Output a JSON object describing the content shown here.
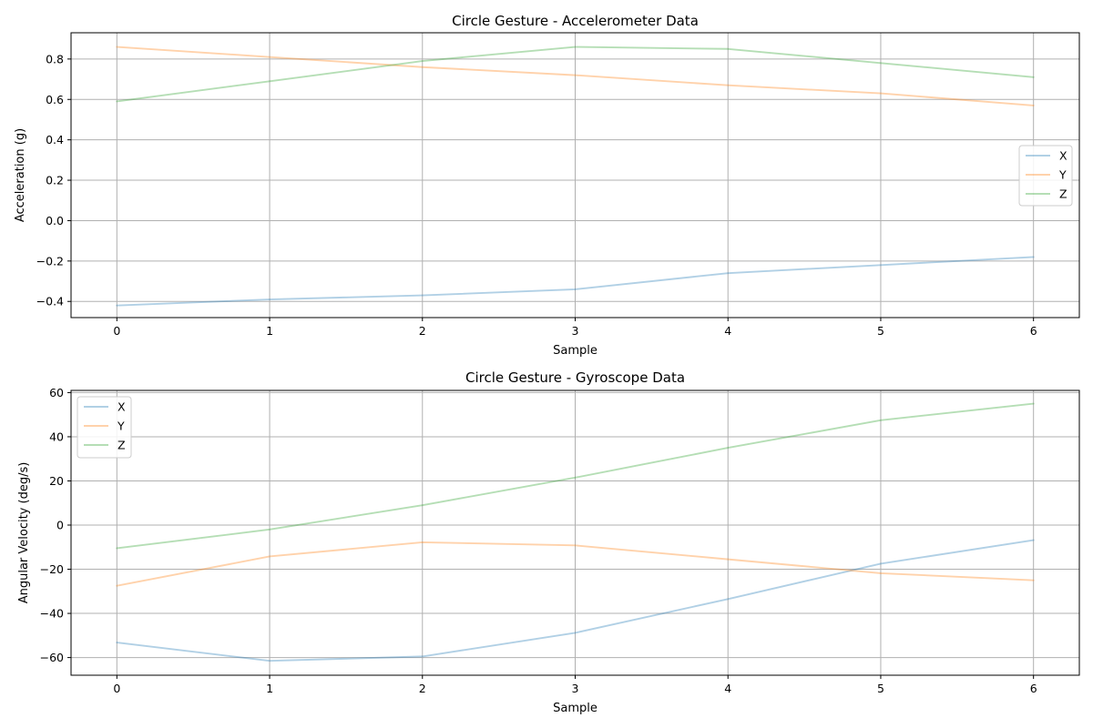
{
  "chart_data": [
    {
      "type": "line",
      "title": "Circle Gesture - Accelerometer Data",
      "xlabel": "Sample",
      "ylabel": "Acceleration (g)",
      "x": [
        0,
        1,
        2,
        3,
        4,
        5,
        6
      ],
      "xlim": [
        -0.3,
        6.3
      ],
      "ylim": [
        -0.48,
        0.93
      ],
      "xticks": [
        0,
        1,
        2,
        3,
        4,
        5,
        6
      ],
      "yticks": [
        -0.4,
        -0.2,
        0.0,
        0.2,
        0.4,
        0.6,
        0.8
      ],
      "ytick_labels": [
        "−0.4",
        "−0.2",
        "0.0",
        "0.2",
        "0.4",
        "0.6",
        "0.8"
      ],
      "grid": true,
      "legend": "center-right",
      "series": [
        {
          "name": "X",
          "color": "#1f77b4",
          "values": [
            -0.42,
            -0.39,
            -0.37,
            -0.34,
            -0.26,
            -0.22,
            -0.18
          ]
        },
        {
          "name": "Y",
          "color": "#ff7f0e",
          "values": [
            0.86,
            0.81,
            0.76,
            0.72,
            0.67,
            0.63,
            0.57
          ]
        },
        {
          "name": "Z",
          "color": "#2ca02c",
          "values": [
            0.59,
            0.69,
            0.79,
            0.86,
            0.85,
            0.78,
            0.71
          ]
        }
      ]
    },
    {
      "type": "line",
      "title": "Circle Gesture - Gyroscope Data",
      "xlabel": "Sample",
      "ylabel": "Angular Velocity (deg/s)",
      "x": [
        0,
        1,
        2,
        3,
        4,
        5,
        6
      ],
      "xlim": [
        -0.3,
        6.3
      ],
      "ylim": [
        -68,
        61
      ],
      "xticks": [
        0,
        1,
        2,
        3,
        4,
        5,
        6
      ],
      "yticks": [
        -60,
        -40,
        -20,
        0,
        20,
        40,
        60
      ],
      "ytick_labels": [
        "−60",
        "−40",
        "−20",
        "0",
        "20",
        "40",
        "60"
      ],
      "grid": true,
      "legend": "top-left",
      "series": [
        {
          "name": "X",
          "color": "#1f77b4",
          "values": [
            -53.2,
            -61.5,
            -59.5,
            -48.8,
            -33.5,
            -17.5,
            -6.8
          ]
        },
        {
          "name": "Y",
          "color": "#ff7f0e",
          "values": [
            -27.5,
            -14.2,
            -7.8,
            -9.2,
            -15.5,
            -21.8,
            -25.0
          ]
        },
        {
          "name": "Z",
          "color": "#2ca02c",
          "values": [
            -10.5,
            -2.0,
            9.0,
            21.5,
            35.0,
            47.5,
            55.0
          ]
        }
      ]
    }
  ]
}
